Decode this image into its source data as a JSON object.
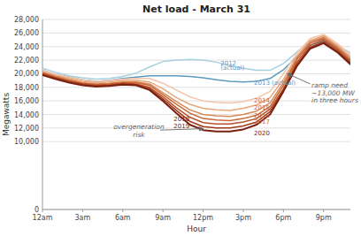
{
  "chart_data": {
    "type": "line",
    "title": "Net load - March 31",
    "xlabel": "Hour",
    "ylabel": "Megawatts",
    "x": [
      0,
      1,
      2,
      3,
      4,
      5,
      6,
      7,
      8,
      9,
      10,
      11,
      12,
      13,
      14,
      15,
      16,
      17,
      18,
      19,
      20,
      21,
      22,
      23
    ],
    "xlim": [
      0,
      23
    ],
    "xticks": [
      {
        "value": 0,
        "label": "12am"
      },
      {
        "value": 3,
        "label": "3am"
      },
      {
        "value": 6,
        "label": "6am"
      },
      {
        "value": 9,
        "label": "9am"
      },
      {
        "value": 12,
        "label": "12pm"
      },
      {
        "value": 15,
        "label": "3pm"
      },
      {
        "value": 18,
        "label": "6pm"
      },
      {
        "value": 21,
        "label": "9pm"
      }
    ],
    "ylim": [
      0,
      28000
    ],
    "yticks": [
      0,
      {
        "value": 10000,
        "label": "10,000"
      },
      {
        "value": 12000,
        "label": "12,000"
      },
      {
        "value": 14000,
        "label": "14,000"
      },
      {
        "value": 16000,
        "label": "16,000"
      },
      {
        "value": 18000,
        "label": "18,000"
      },
      {
        "value": 20000,
        "label": "20,000"
      },
      {
        "value": 22000,
        "label": "22,000"
      },
      {
        "value": 24000,
        "label": "24,000"
      },
      {
        "value": 26000,
        "label": "26,000"
      },
      {
        "value": 28000,
        "label": "28,000"
      }
    ],
    "grid": true,
    "series": [
      {
        "color": "#a8cfe0",
        "values": [
          20800,
          20200,
          19700,
          19400,
          19200,
          19300,
          19600,
          20100,
          21000,
          21800,
          22000,
          22100,
          22000,
          21700,
          21200,
          20800,
          20500,
          20500,
          21500,
          23200,
          24800,
          25200,
          24200,
          23100
        ]
      },
      {
        "color": "#5b9bbf",
        "values": [
          20500,
          19900,
          19500,
          19100,
          18900,
          19000,
          19300,
          19500,
          19700,
          19700,
          19700,
          19600,
          19400,
          19100,
          18900,
          18800,
          18900,
          19300,
          20600,
          22500,
          24200,
          24800,
          23800,
          22500
        ]
      },
      {
        "color": "#f4c4a8",
        "values": [
          20500,
          19900,
          19500,
          19100,
          18900,
          19000,
          19200,
          19300,
          19300,
          18600,
          17600,
          16600,
          16000,
          15800,
          15700,
          15900,
          16400,
          17400,
          20000,
          23000,
          25200,
          25800,
          24500,
          22800
        ]
      },
      {
        "color": "#e8a87a",
        "values": [
          20300,
          19700,
          19300,
          18900,
          18700,
          18800,
          19000,
          19000,
          18800,
          17800,
          16500,
          15500,
          14900,
          14700,
          14600,
          14900,
          15400,
          16500,
          19200,
          22600,
          24900,
          25600,
          24200,
          22500
        ]
      },
      {
        "color": "#d98858",
        "values": [
          20200,
          19600,
          19100,
          18700,
          18500,
          18600,
          18800,
          18800,
          18500,
          17200,
          15900,
          14700,
          14000,
          13800,
          13700,
          14000,
          14500,
          15700,
          18700,
          22300,
          24700,
          25400,
          24000,
          22200
        ]
      },
      {
        "color": "#c96838",
        "values": [
          20100,
          19500,
          19000,
          18600,
          18400,
          18500,
          18700,
          18700,
          18300,
          16900,
          15500,
          14200,
          13400,
          13200,
          13100,
          13400,
          13900,
          15200,
          18300,
          22100,
          24500,
          25200,
          23800,
          22000
        ]
      },
      {
        "color": "#b85028",
        "values": [
          20000,
          19400,
          18900,
          18500,
          18300,
          18400,
          18600,
          18500,
          18000,
          16600,
          15000,
          13600,
          12800,
          12600,
          12600,
          12900,
          13400,
          14800,
          17800,
          21700,
          24200,
          25000,
          23600,
          21800
        ]
      },
      {
        "color": "#a03818",
        "values": [
          19900,
          19300,
          18800,
          18400,
          18200,
          18300,
          18500,
          18400,
          17800,
          16300,
          14600,
          13000,
          12200,
          12000,
          12000,
          12300,
          12900,
          14400,
          17600,
          21400,
          23900,
          24700,
          23400,
          21600
        ]
      },
      {
        "color": "#7a2010",
        "values": [
          19800,
          19200,
          18700,
          18300,
          18100,
          18200,
          18400,
          18300,
          17600,
          16000,
          14200,
          12500,
          11700,
          11500,
          11500,
          11800,
          12500,
          14000,
          17400,
          21100,
          23700,
          24500,
          23200,
          21400
        ]
      }
    ],
    "annotations": [
      {
        "text": "2012",
        "x": 13.3,
        "y": 21500,
        "color": "#5b9bbf"
      },
      {
        "text": "(actual)",
        "x": 13.3,
        "y": 20900,
        "color": "#5b9bbf"
      },
      {
        "text": "2013 (actual)",
        "x": 15.8,
        "y": 18700,
        "color": "#5b9bbf"
      },
      {
        "text": "2014",
        "x": 15.8,
        "y": 16100,
        "color": "#c96838"
      },
      {
        "text": "2015",
        "x": 15.8,
        "y": 15000,
        "color": "#c96838"
      },
      {
        "text": "2016",
        "x": 15.8,
        "y": 13900,
        "color": "#c96838"
      },
      {
        "text": "2017",
        "x": 15.8,
        "y": 12900,
        "color": "#c96838"
      },
      {
        "text": "2018",
        "x": 9.8,
        "y": 13300,
        "color": "#7a2010"
      },
      {
        "text": "2019",
        "x": 9.8,
        "y": 12300,
        "color": "#7a2010"
      },
      {
        "text": "2020",
        "x": 15.8,
        "y": 11300,
        "color": "#7a2010"
      },
      {
        "text": "overgeneration\nrisk",
        "x": 7.2,
        "y": 11600,
        "color": "#666666",
        "arrow_from": {
          "x": 8.8,
          "y": 11700
        },
        "arrow_to": {
          "x": 12.0,
          "y": 11900
        }
      },
      {
        "text": "ramp need\n~13,000 MW\nin three hours",
        "x": 20.1,
        "y": 17200,
        "color": "#666666",
        "arrow_from": {
          "x": 20.0,
          "y": 18500
        },
        "arrow_to": {
          "x": 18.3,
          "y": 20000
        }
      }
    ]
  }
}
